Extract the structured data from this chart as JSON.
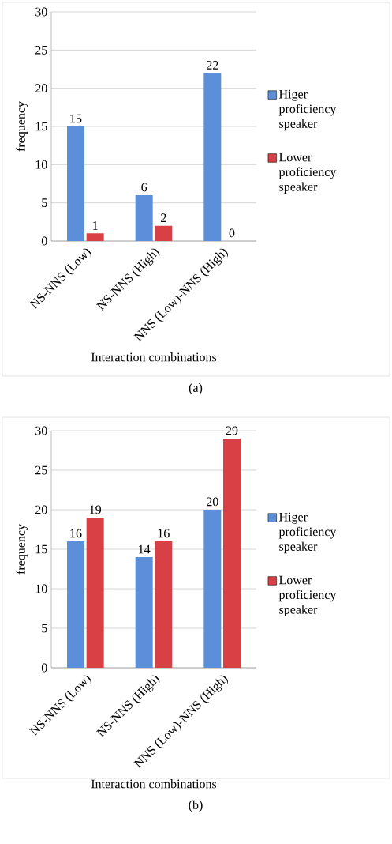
{
  "chart_data": [
    {
      "type": "bar",
      "xlabel": "Interaction combinations",
      "ylabel": "frequency",
      "categories": [
        "NS-NNS (Low)",
        "NS-NNS (High)",
        "NNS (Low)-NNS (High)"
      ],
      "series": [
        {
          "name": "Higer proficiency speaker",
          "color": "#5b8fd9",
          "values": [
            15,
            6,
            22
          ]
        },
        {
          "name": "Lower proficiency speaker",
          "color": "#d94045",
          "values": [
            1,
            2,
            0
          ]
        }
      ],
      "ylim": [
        0,
        30
      ],
      "yticks": [
        0,
        5,
        10,
        15,
        20,
        25,
        30
      ],
      "grid": "y",
      "legend": "right",
      "data_labels": true,
      "annotations": [
        "(a)"
      ]
    },
    {
      "type": "bar",
      "xlabel": "Interaction combinations",
      "ylabel": "frequency",
      "categories": [
        "NS-NNS (Low)",
        "NS-NNS (High)",
        "NNS (Low)-NNS (High)"
      ],
      "series": [
        {
          "name": "Higer proficiency speaker",
          "color": "#5b8fd9",
          "values": [
            16,
            14,
            20
          ]
        },
        {
          "name": "Lower proficiency speaker",
          "color": "#d94045",
          "values": [
            19,
            16,
            29
          ]
        }
      ],
      "ylim": [
        0,
        30
      ],
      "yticks": [
        0,
        5,
        10,
        15,
        20,
        25,
        30
      ],
      "grid": "y",
      "legend": "right",
      "data_labels": true,
      "annotations": [
        "(b)"
      ]
    }
  ]
}
